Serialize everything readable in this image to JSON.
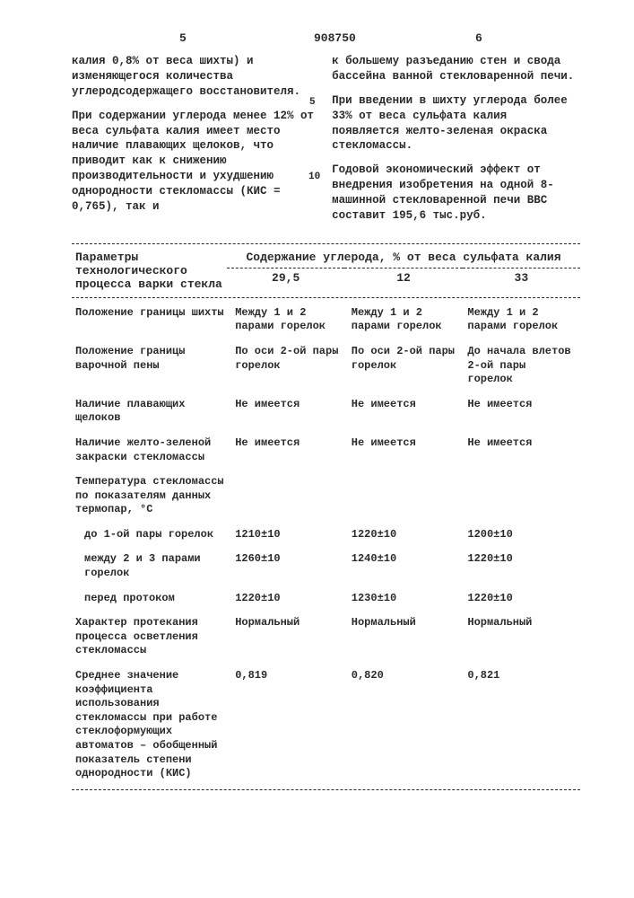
{
  "header": {
    "page_left": "5",
    "docno": "908750",
    "page_right": "6",
    "lineref5": "5",
    "lineref10": "10"
  },
  "left_col": {
    "p1": "калия 0,8% от веса шихты) и изменяющегося количества углеродсодержащего восстановителя.",
    "p2": "При содержании углерода менее 12% от веса сульфата калия имеет место наличие плавающих щелоков, что приводит как к снижению производительности и ухудшению однородности стекломассы (КИС = 0,765), так и"
  },
  "right_col": {
    "p1": "к большему разъеданию стен и свода бассейна ванной стекловаренной печи.",
    "p2": "При введении в шихту углерода более 33% от веса сульфата калия появляется желто-зеленая окраска стекломассы.",
    "p3": "Годовой экономический эффект от внедрения изобретения на одной 8-машинной стекловаренной печи ВВС составит 195,6 тыс.руб."
  },
  "table": {
    "head_param": "Параметры технологического процесса варки стекла",
    "head_main": "Содержание углерода, % от веса сульфата калия",
    "cols": [
      "29,5",
      "12",
      "33"
    ],
    "rows": [
      {
        "p": "Положение границы шихты",
        "v": [
          "Между 1 и 2 парами горелок",
          "Между 1 и 2 парами горелок",
          "Между 1 и 2 парами горелок"
        ]
      },
      {
        "p": "Положение границы варочной пены",
        "v": [
          "По оси 2-ой пары горелок",
          "По оси 2-ой пары горелок",
          "До начала влетов 2-ой пары горелок"
        ]
      },
      {
        "p": "Наличие плавающих щелоков",
        "v": [
          "Не имеется",
          "Не имеется",
          "Не имеется"
        ]
      },
      {
        "p": "Наличие желто-зеленой закраски стекломассы",
        "v": [
          "Не имеется",
          "Не имеется",
          "Не имеется"
        ]
      },
      {
        "p": "Температура стекломассы по показателям данных термопар, °С",
        "v": [
          "",
          "",
          ""
        ]
      },
      {
        "p": "до 1-ой пары горелок",
        "indent": true,
        "v": [
          "1210±10",
          "1220±10",
          "1200±10"
        ]
      },
      {
        "p": "между 2 и 3 парами горелок",
        "indent": true,
        "v": [
          "1260±10",
          "1240±10",
          "1220±10"
        ]
      },
      {
        "p": "перед протоком",
        "indent": true,
        "v": [
          "1220±10",
          "1230±10",
          "1220±10"
        ]
      },
      {
        "p": "Характер протекания процесса осветления стекломассы",
        "v": [
          "Нормальный",
          "Нормальный",
          "Нормальный"
        ]
      },
      {
        "p": "Среднее значение коэффициента использования стекломассы при работе стеклоформующих автоматов – обобщенный показатель степени однородности (КИС)",
        "v": [
          "0,819",
          "0,820",
          "0,821"
        ]
      }
    ]
  }
}
